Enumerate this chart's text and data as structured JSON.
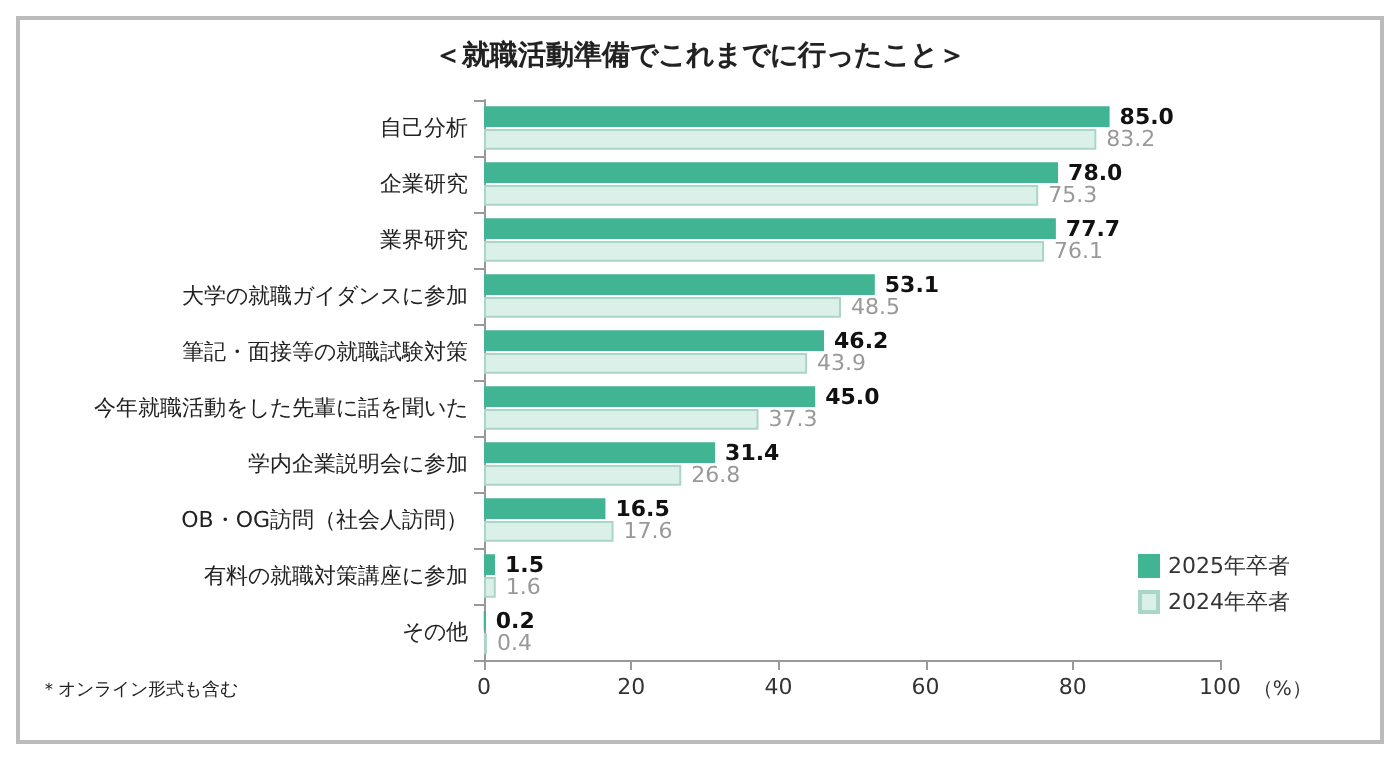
{
  "chart_data": {
    "type": "bar",
    "orientation": "horizontal",
    "title": "＜就職活動準備でこれまでに行ったこと＞",
    "xlabel": "（%）",
    "categories": [
      "自己分析",
      "企業研究",
      "業界研究",
      "大学の就職ガイダンスに参加",
      "筆記・面接等の就職試験対策",
      "今年就職活動をした先輩に話を聞いた",
      "学内企業説明会に参加",
      "OB・OG訪問（社会人訪問）",
      "有料の就職対策講座に参加",
      "その他"
    ],
    "series": [
      {
        "name": "2025年卒者",
        "color": "#41b593",
        "values": [
          85.0,
          78.0,
          77.7,
          53.1,
          46.2,
          45.0,
          31.4,
          16.5,
          1.5,
          0.2
        ],
        "value_labels": [
          "85.0",
          "78.0",
          "77.7",
          "53.1",
          "46.2",
          "45.0",
          "31.4",
          "16.5",
          "1.5",
          "0.2"
        ]
      },
      {
        "name": "2024年卒者",
        "color": "#daf0e9",
        "values": [
          83.2,
          75.3,
          76.1,
          48.5,
          43.9,
          37.3,
          26.8,
          17.6,
          1.6,
          0.4
        ],
        "value_labels": [
          "83.2",
          "75.3",
          "76.1",
          "48.5",
          "43.9",
          "37.3",
          "26.8",
          "17.6",
          "1.6",
          "0.4"
        ]
      }
    ],
    "xlim": [
      0,
      100
    ],
    "xticks": [
      0,
      20,
      40,
      60,
      80,
      100
    ],
    "grid": false,
    "legend": "right",
    "annotations": [
      "＊オンライン形式も含む"
    ]
  }
}
